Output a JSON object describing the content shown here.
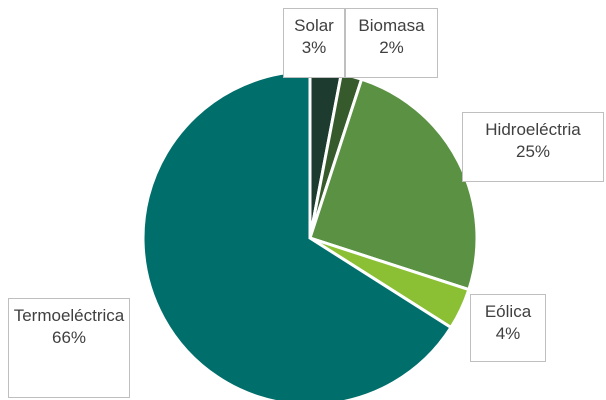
{
  "chart_data": {
    "type": "pie",
    "categories": [
      "Solar",
      "Biomasa",
      "Hidroeléctria",
      "Eólica",
      "Termoeléctrica"
    ],
    "values": [
      3,
      2,
      25,
      4,
      66
    ],
    "value_labels": [
      "3%",
      "2%",
      "25%",
      "4%",
      "66%"
    ],
    "colors": [
      "#1d3b2f",
      "#375a2c",
      "#5a9142",
      "#8bbf34",
      "#006e6b"
    ]
  }
}
